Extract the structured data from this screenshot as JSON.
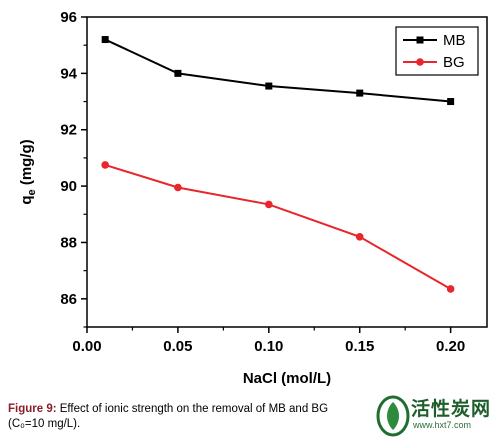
{
  "chart_data": {
    "type": "line",
    "xlabel": "NaCl (mol/L)",
    "ylabel_main": "q",
    "ylabel_sub": "e",
    "ylabel_unit": " (mg/g)",
    "xlim": [
      0.0,
      0.22
    ],
    "ylim": [
      85,
      96
    ],
    "xticks": [
      "0.00",
      "0.05",
      "0.10",
      "0.15",
      "0.20"
    ],
    "xtick_values": [
      0.0,
      0.05,
      0.1,
      0.15,
      0.2
    ],
    "yticks": [
      "86",
      "88",
      "90",
      "92",
      "94",
      "96"
    ],
    "ytick_values": [
      86,
      88,
      90,
      92,
      94,
      96
    ],
    "grid": false,
    "legend_position": "top-right",
    "series": [
      {
        "name": "MB",
        "color": "#000000",
        "marker": "square",
        "x": [
          0.01,
          0.05,
          0.1,
          0.15,
          0.2
        ],
        "values": [
          95.2,
          94.0,
          93.55,
          93.3,
          93.0
        ]
      },
      {
        "name": "BG",
        "color": "#e8262b",
        "marker": "circle",
        "x": [
          0.01,
          0.05,
          0.1,
          0.15,
          0.2
        ],
        "values": [
          90.75,
          89.95,
          89.35,
          88.2,
          86.35
        ]
      }
    ]
  },
  "caption": {
    "lead": "Figure 9:",
    "text": " Effect of ionic strength on the removal of MB and BG",
    "line2": "(C₀=10 mg/L)."
  },
  "watermark": {
    "title": "活性炭网",
    "url": "www.hxt7.com"
  }
}
